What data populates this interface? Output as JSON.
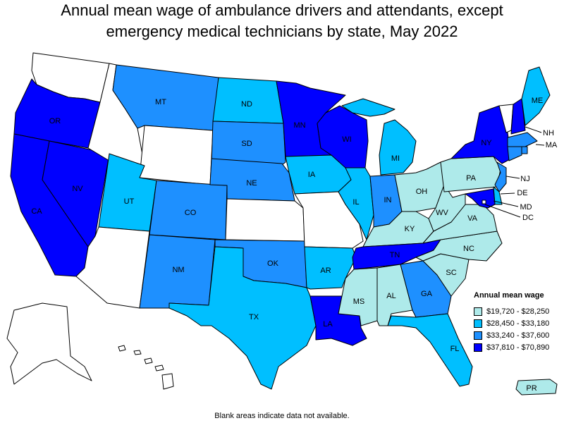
{
  "title_line1": "Annual mean wage of ambulance drivers and attendants, except",
  "title_line2": "emergency medical technicians by state, May 2022",
  "legend": {
    "title": "Annual mean wage",
    "items": [
      {
        "label": "$19,720 - $28,250",
        "color": "#aeeaea"
      },
      {
        "label": "$28,450 - $33,180",
        "color": "#00bfff"
      },
      {
        "label": "$33,240 - $37,600",
        "color": "#1e90ff"
      },
      {
        "label": "$37,810 - $70,890",
        "color": "#0000ff"
      }
    ]
  },
  "no_data_color": "#ffffff",
  "footnote": "Blank areas indicate data not available.",
  "states": [
    {
      "code": "WA",
      "label": "",
      "tier": 0
    },
    {
      "code": "OR",
      "label": "OR",
      "tier": 4
    },
    {
      "code": "CA",
      "label": "CA",
      "tier": 4
    },
    {
      "code": "NV",
      "label": "NV",
      "tier": 4
    },
    {
      "code": "ID",
      "label": "",
      "tier": 0
    },
    {
      "code": "MT",
      "label": "MT",
      "tier": 3
    },
    {
      "code": "WY",
      "label": "",
      "tier": 0
    },
    {
      "code": "UT",
      "label": "UT",
      "tier": 2
    },
    {
      "code": "AZ",
      "label": "",
      "tier": 0
    },
    {
      "code": "CO",
      "label": "CO",
      "tier": 3
    },
    {
      "code": "NM",
      "label": "NM",
      "tier": 3
    },
    {
      "code": "ND",
      "label": "ND",
      "tier": 2
    },
    {
      "code": "SD",
      "label": "SD",
      "tier": 3
    },
    {
      "code": "NE",
      "label": "NE",
      "tier": 3
    },
    {
      "code": "KS",
      "label": "",
      "tier": 0
    },
    {
      "code": "OK",
      "label": "OK",
      "tier": 3
    },
    {
      "code": "TX",
      "label": "TX",
      "tier": 2
    },
    {
      "code": "MN",
      "label": "MN",
      "tier": 4
    },
    {
      "code": "IA",
      "label": "IA",
      "tier": 2
    },
    {
      "code": "MO",
      "label": "",
      "tier": 0
    },
    {
      "code": "AR",
      "label": "AR",
      "tier": 2
    },
    {
      "code": "LA",
      "label": "LA",
      "tier": 4
    },
    {
      "code": "WI",
      "label": "WI",
      "tier": 4
    },
    {
      "code": "IL",
      "label": "IL",
      "tier": 2
    },
    {
      "code": "MI",
      "label": "MI",
      "tier": 2
    },
    {
      "code": "IN",
      "label": "IN",
      "tier": 3
    },
    {
      "code": "OH",
      "label": "OH",
      "tier": 1
    },
    {
      "code": "KY",
      "label": "KY",
      "tier": 1
    },
    {
      "code": "TN",
      "label": "TN",
      "tier": 4
    },
    {
      "code": "MS",
      "label": "MS",
      "tier": 1
    },
    {
      "code": "AL",
      "label": "AL",
      "tier": 1
    },
    {
      "code": "GA",
      "label": "GA",
      "tier": 3
    },
    {
      "code": "FL",
      "label": "FL",
      "tier": 2
    },
    {
      "code": "SC",
      "label": "SC",
      "tier": 1
    },
    {
      "code": "NC",
      "label": "NC",
      "tier": 1
    },
    {
      "code": "VA",
      "label": "VA",
      "tier": 1
    },
    {
      "code": "WV",
      "label": "WV",
      "tier": 1
    },
    {
      "code": "PA",
      "label": "PA",
      "tier": 1
    },
    {
      "code": "NY",
      "label": "NY",
      "tier": 4
    },
    {
      "code": "VT",
      "label": "",
      "tier": 0
    },
    {
      "code": "NH",
      "label": "NH",
      "tier": 4
    },
    {
      "code": "ME",
      "label": "ME",
      "tier": 2
    },
    {
      "code": "MA",
      "label": "MA",
      "tier": 3
    },
    {
      "code": "RI",
      "label": "",
      "tier": 3
    },
    {
      "code": "CT",
      "label": "",
      "tier": 3
    },
    {
      "code": "NJ",
      "label": "NJ",
      "tier": 3
    },
    {
      "code": "DE",
      "label": "DE",
      "tier": 2
    },
    {
      "code": "MD",
      "label": "MD",
      "tier": 4
    },
    {
      "code": "DC",
      "label": "DC",
      "tier": 0
    },
    {
      "code": "AK",
      "label": "",
      "tier": 0
    },
    {
      "code": "HI",
      "label": "",
      "tier": 0
    },
    {
      "code": "PR",
      "label": "PR",
      "tier": 1
    }
  ]
}
